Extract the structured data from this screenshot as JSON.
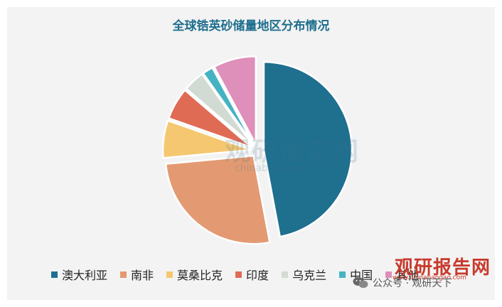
{
  "chart_data": {
    "type": "pie",
    "title": "全球锆英砂储量地区分布情况",
    "categories": [
      "澳大利亚",
      "南非",
      "莫桑比克",
      "印度",
      "乌克兰",
      "中国",
      "其他"
    ],
    "values": [
      48,
      27,
      7,
      6,
      4,
      2,
      8
    ],
    "colors": [
      "#1f6f8f",
      "#e39a72",
      "#f5c770",
      "#e06b55",
      "#d2dbd3",
      "#45b3c2",
      "#de8fba"
    ],
    "explode": [
      true,
      true,
      true,
      true,
      true,
      true,
      true
    ],
    "legend_position": "bottom"
  },
  "watermark": {
    "center_text": "观研报告网",
    "center_sub": "chinabaogao.com",
    "corner_logo": "观研报告网",
    "corner_url": "www.chinabaogao.com",
    "wechat_text": "公众号 · 观研天下"
  }
}
